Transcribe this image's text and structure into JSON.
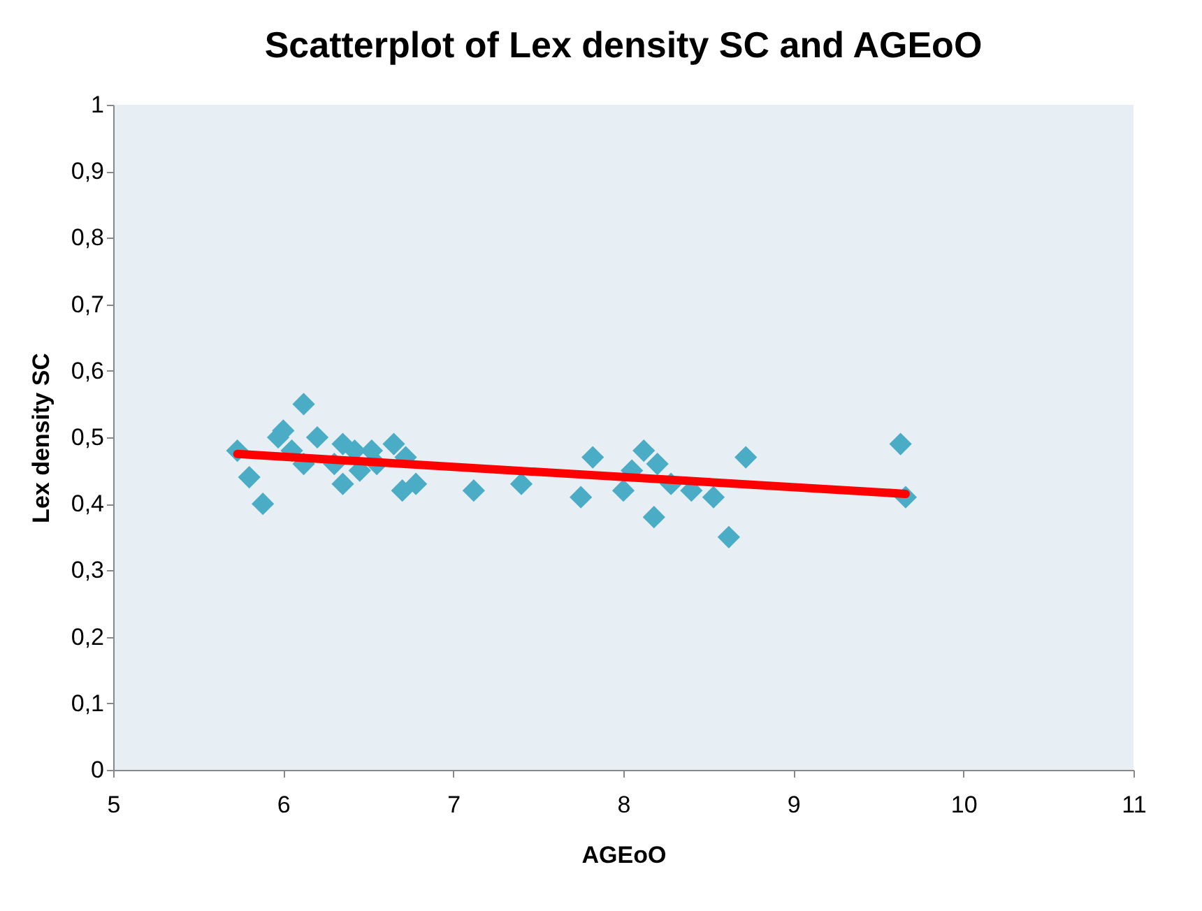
{
  "chart_data": {
    "type": "scatter",
    "title": "Scatterplot of Lex density SC and AGEoO",
    "xlabel": "AGEoO",
    "ylabel": "Lex density SC",
    "series": [
      {
        "color": "#4bacc6",
        "marker": "diamond",
        "x": [
          5.73,
          5.8,
          5.88,
          5.97,
          6.0,
          6.05,
          6.12,
          6.12,
          6.2,
          6.3,
          6.35,
          6.35,
          6.42,
          6.45,
          6.52,
          6.55,
          6.65,
          6.7,
          6.72,
          6.78,
          7.12,
          7.4,
          7.75,
          7.82,
          8.0,
          8.05,
          8.12,
          8.18,
          8.2,
          8.28,
          8.4,
          8.53,
          8.62,
          8.72,
          9.63,
          9.66
        ],
        "values": [
          0.48,
          0.44,
          0.4,
          0.5,
          0.51,
          0.48,
          0.55,
          0.46,
          0.5,
          0.46,
          0.49,
          0.43,
          0.48,
          0.45,
          0.48,
          0.46,
          0.49,
          0.42,
          0.47,
          0.43,
          0.42,
          0.43,
          0.41,
          0.47,
          0.42,
          0.45,
          0.48,
          0.38,
          0.46,
          0.43,
          0.42,
          0.41,
          0.35,
          0.47,
          0.49,
          0.41
        ]
      },
      {
        "type": "line",
        "color": "#ff0000",
        "line_style": "solid",
        "x": [
          5.73,
          9.66
        ],
        "values": [
          0.475,
          0.415
        ]
      }
    ],
    "xlim": [
      5,
      11
    ],
    "xticks": [
      5,
      6,
      7,
      8,
      9,
      10,
      11
    ],
    "ylim": [
      0,
      1
    ],
    "yticks": [
      0,
      {
        "value": 0.1,
        "label": "0,1"
      },
      {
        "value": 0.2,
        "label": "0,2"
      },
      {
        "value": 0.3,
        "label": "0,3"
      },
      {
        "value": 0.4,
        "label": "0,4"
      },
      {
        "value": 0.5,
        "label": "0,5"
      },
      {
        "value": 0.6,
        "label": "0,6"
      },
      {
        "value": 0.7,
        "label": "0,7"
      },
      {
        "value": 0.8,
        "label": "0,8"
      },
      {
        "value": 0.9,
        "label": "0,9"
      },
      1
    ],
    "grid": false
  }
}
